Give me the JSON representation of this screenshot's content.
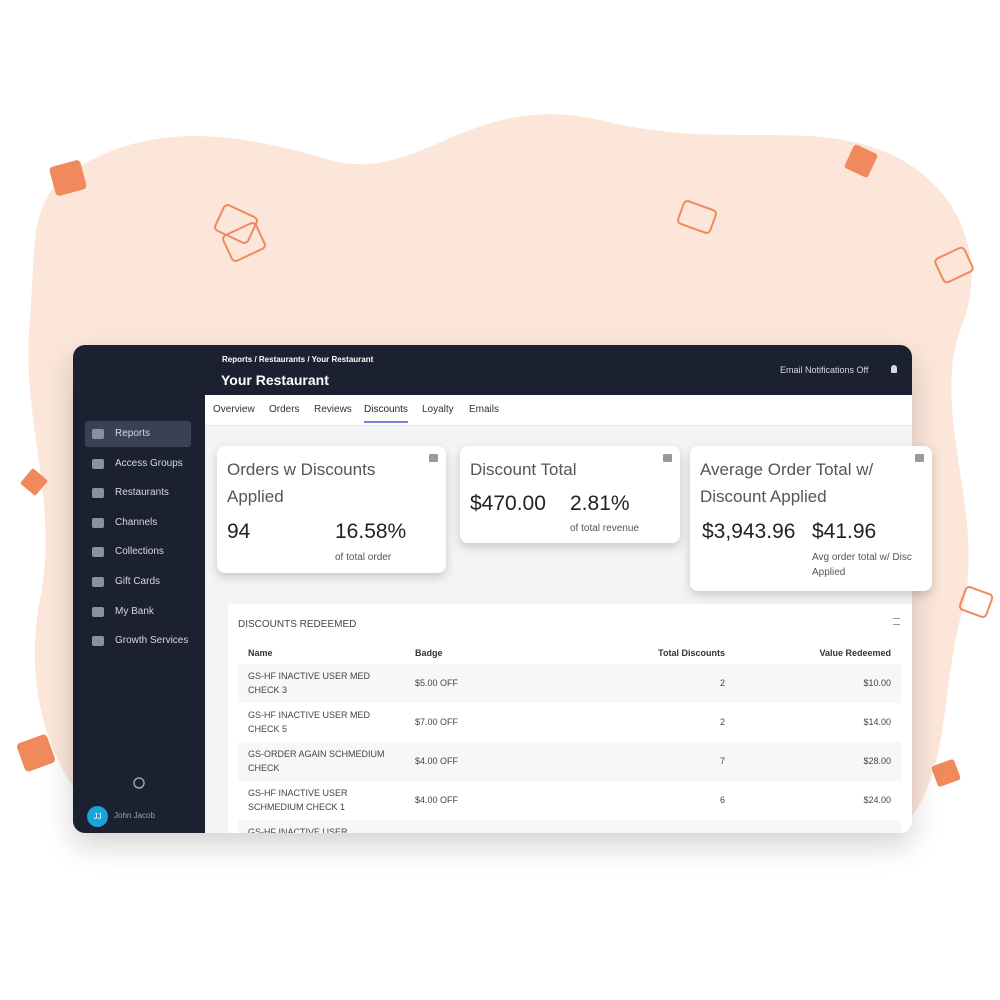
{
  "breadcrumb": "Reports / Restaurants / Your Restaurant",
  "page_title": "Your Restaurant",
  "notifications": "Email Notifications Off",
  "tabs": [
    "Overview",
    "Orders",
    "Reviews",
    "Discounts",
    "Loyalty",
    "Emails"
  ],
  "sidebar": [
    "Reports",
    "Access Groups",
    "Restaurants",
    "Channels",
    "Collections",
    "Gift Cards",
    "My Bank",
    "Growth Services"
  ],
  "user": {
    "initials": "JJ",
    "name": "John Jacob"
  },
  "cards": [
    {
      "title": "Orders w Discounts Applied",
      "value": "94",
      "secondary": "16.58%",
      "secondary_label": "of total order"
    },
    {
      "title": "Discount Total",
      "value": "$470.00",
      "secondary": "2.81%",
      "secondary_label": "of total revenue"
    },
    {
      "title": "Average Order Total w/ Discount Applied",
      "value": "$3,943.96",
      "secondary": "$41.96",
      "secondary_label": "Avg order total w/ Disc Applied"
    }
  ],
  "table": {
    "title": "DISCOUNTS REDEEMED",
    "columns": [
      "Name",
      "Badge",
      "Total Discounts",
      "Value Redeemed"
    ],
    "rows": [
      [
        "GS-HF INACTIVE USER MED CHECK 3",
        "$5.00 OFF",
        "2",
        "$10.00"
      ],
      [
        "GS-HF INACTIVE USER MED CHECK 5",
        "$7.00 OFF",
        "2",
        "$14.00"
      ],
      [
        "GS-ORDER AGAIN SCHMEDIUM CHECK",
        "$4.00 OFF",
        "7",
        "$28.00"
      ],
      [
        "GS-HF INACTIVE USER SCHMEDIUM CHECK 1",
        "$4.00 OFF",
        "6",
        "$24.00"
      ],
      [
        "GS-HF INACTIVE USER"
      ]
    ]
  }
}
